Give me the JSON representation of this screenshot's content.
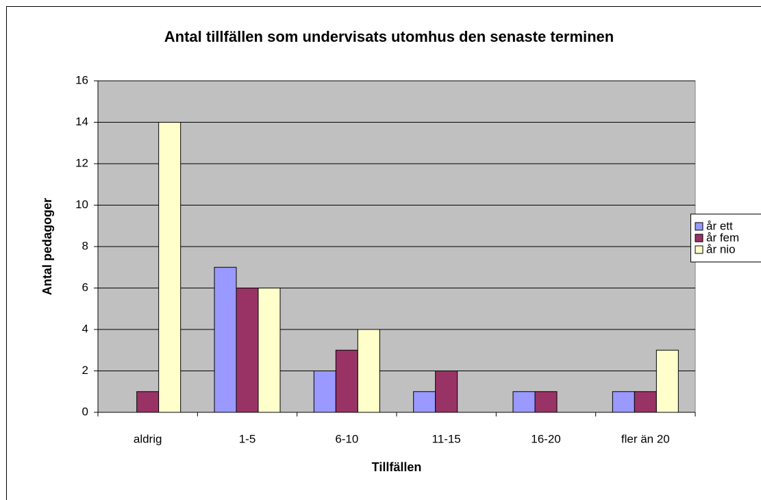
{
  "chart_data": {
    "type": "bar",
    "title": "Antal tillfällen som undervisats utomhus den senaste terminen",
    "xlabel": "Tillfällen",
    "ylabel": "Antal pedagoger",
    "categories": [
      "aldrig",
      "1-5",
      "6-10",
      "11-15",
      "16-20",
      "fler än 20"
    ],
    "series": [
      {
        "name": "år ett",
        "color": "#9999ff",
        "values": [
          0,
          7,
          2,
          1,
          1,
          1
        ]
      },
      {
        "name": "år fem",
        "color": "#993366",
        "values": [
          1,
          6,
          3,
          2,
          1,
          1
        ]
      },
      {
        "name": "år nio",
        "color": "#ffffcc",
        "values": [
          14,
          6,
          4,
          0,
          0,
          3
        ]
      }
    ],
    "ylim": [
      0,
      16
    ],
    "yticks": [
      0,
      2,
      4,
      6,
      8,
      10,
      12,
      14,
      16
    ],
    "grid": true,
    "legend": "right",
    "background": "#c0c0c0"
  }
}
